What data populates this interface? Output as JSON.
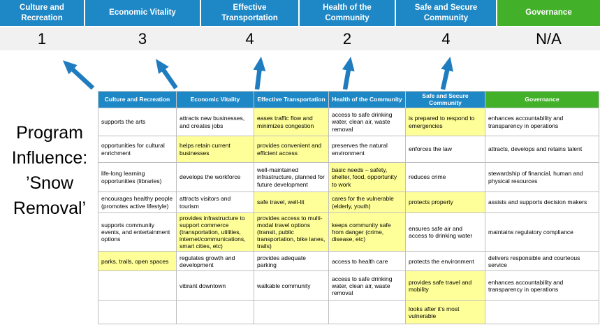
{
  "title": {
    "lines": [
      "Program",
      "Influence:",
      "’Snow",
      "Removal’"
    ],
    "full": "Program Influence: ’Snow Removal’"
  },
  "categories": [
    {
      "label": "Culture and Recreation",
      "score": "1"
    },
    {
      "label": "Economic Vitality",
      "score": "3"
    },
    {
      "label": "Effective Transportation",
      "score": "4"
    },
    {
      "label": "Health of the Community",
      "score": "2"
    },
    {
      "label": "Safe and Secure Community",
      "score": "4"
    },
    {
      "label": "Governance",
      "score": "N/A"
    }
  ],
  "colors": {
    "category_blue": "#1E87C5",
    "governance_green": "#43B02A",
    "highlight_yellow": "#FFFF99",
    "score_band_gray": "#F1F1F1",
    "arrow_blue": "#1F7CBF"
  },
  "matrix": {
    "rows": [
      {
        "cells": [
          {
            "text": "supports the arts",
            "hl": false
          },
          {
            "text": "attracts new businesses, and creates jobs",
            "hl": false
          },
          {
            "text": "eases traffic flow and minimizes congestion",
            "hl": true
          },
          {
            "text": "access to safe drinking water, clean air, waste removal",
            "hl": false
          },
          {
            "text": "is prepared to respond to emergencies",
            "hl": true
          },
          {
            "text": "enhances accountability and transparency in operations",
            "hl": false
          }
        ]
      },
      {
        "cells": [
          {
            "text": "opportunities for cultural enrichment",
            "hl": false
          },
          {
            "text": "helps retain current businesses",
            "hl": true
          },
          {
            "text": "provides convenient and efficient access",
            "hl": true
          },
          {
            "text": "preserves the natural environment",
            "hl": false
          },
          {
            "text": "enforces the law",
            "hl": false
          },
          {
            "text": "attracts, develops and retains talent",
            "hl": false
          }
        ]
      },
      {
        "cells": [
          {
            "text": "life-long learning opportunities (libraries)",
            "hl": false
          },
          {
            "text": "develops the workforce",
            "hl": false
          },
          {
            "text": "well-maintained infrastructure, planned for future development",
            "hl": false
          },
          {
            "text": "basic needs – safety, shelter, food, opportunity to work",
            "hl": true
          },
          {
            "text": "reduces crime",
            "hl": false
          },
          {
            "text": "stewardship of financial, human and physical resources",
            "hl": false
          }
        ]
      },
      {
        "cells": [
          {
            "text": "encourages healthy people (promotes active lifestyle)",
            "hl": false
          },
          {
            "text": "attracts visitors and tourism",
            "hl": false
          },
          {
            "text": "safe travel, well-lit",
            "hl": true
          },
          {
            "text": "cares for the vulnerable (elderly, youth)",
            "hl": true
          },
          {
            "text": "protects property",
            "hl": true
          },
          {
            "text": "assists and supports decision makers",
            "hl": false
          }
        ]
      },
      {
        "cells": [
          {
            "text": "supports community events, and entertainment options",
            "hl": false
          },
          {
            "text": "provides infrastructure to support commerce (transportation, utilities, internet/communications, smart cities, etc)",
            "hl": true
          },
          {
            "text": "provides access to multi-modal travel options (transit, public transportation, bike lanes, trails)",
            "hl": true
          },
          {
            "text": "keeps community safe from danger (crime, disease, etc)",
            "hl": true
          },
          {
            "text": "ensures safe air and access to drinking water",
            "hl": false
          },
          {
            "text": "maintains regulatory compliance",
            "hl": false
          }
        ]
      },
      {
        "cells": [
          {
            "text": "parks, trails, open spaces",
            "hl": true
          },
          {
            "text": "regulates growth and development",
            "hl": false
          },
          {
            "text": "provides adequate parking",
            "hl": false
          },
          {
            "text": "access to health care",
            "hl": false
          },
          {
            "text": "protects the environment",
            "hl": false
          },
          {
            "text": "delivers responsible and courteous service",
            "hl": false
          }
        ]
      },
      {
        "cells": [
          {
            "text": "",
            "hl": false
          },
          {
            "text": "vibrant downtown",
            "hl": false
          },
          {
            "text": "walkable community",
            "hl": false
          },
          {
            "text": "access to safe drinking water, clean air, waste removal",
            "hl": false
          },
          {
            "text": "provides safe travel and mobility",
            "hl": true
          },
          {
            "text": "enhances accountability and transparency in operations",
            "hl": false
          }
        ]
      },
      {
        "cells": [
          {
            "text": "",
            "hl": false
          },
          {
            "text": "",
            "hl": false
          },
          {
            "text": "",
            "hl": false
          },
          {
            "text": "",
            "hl": false
          },
          {
            "text": "looks after it's most vulnerable",
            "hl": true
          },
          {
            "text": "",
            "hl": false
          }
        ]
      }
    ]
  }
}
